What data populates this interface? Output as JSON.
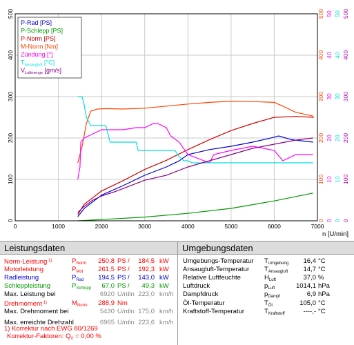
{
  "chart_data": {
    "type": "line",
    "xlabel": "n [U/min]",
    "xlim": [
      0,
      7000
    ],
    "x_ticks": [
      "0",
      "1000",
      "2000",
      "3000",
      "4000",
      "5000",
      "6000",
      "7000"
    ],
    "grid": true,
    "legend_position": "top-left",
    "y_axes": [
      {
        "side": "left",
        "offset": 0,
        "color": "#000000",
        "range": [
          0,
          500
        ],
        "ticks": [
          "0",
          "100",
          "200",
          "300",
          "400",
          "500"
        ]
      },
      {
        "side": "right",
        "offset": 0,
        "color": "#ff4400",
        "range": [
          0,
          500
        ],
        "ticks": [
          "0",
          "100",
          "200",
          "300",
          "400",
          "500"
        ]
      },
      {
        "side": "right",
        "offset": 1,
        "color": "#ff00ff",
        "range": [
          0,
          50
        ],
        "ticks": [
          "0",
          "10",
          "20",
          "30",
          "40",
          "50"
        ]
      },
      {
        "side": "right",
        "offset": 2,
        "color": "#00dddd",
        "range": [
          0,
          50
        ],
        "ticks": [
          "0",
          "10",
          "20",
          "30",
          "40",
          "50"
        ]
      },
      {
        "side": "right",
        "offset": 3,
        "color": "#b000b0",
        "range": [
          0,
          500
        ],
        "ticks": [
          "0",
          "100",
          "200",
          "300",
          "400",
          "500"
        ]
      }
    ],
    "legend": [
      {
        "label": "P-Rad [PS]",
        "color": "#0000cc"
      },
      {
        "label": "P-Schlepp [PS]",
        "color": "#009900"
      },
      {
        "label": "P-Norm [PS]",
        "color": "#cc0000"
      },
      {
        "label": "M-Norm [Nm]",
        "color": "#ff4400"
      },
      {
        "label": "Zündung [°]",
        "color": "#ff00ff"
      },
      {
        "label": "T",
        "sub": "Ansaugluft",
        "suffix": " [°C]",
        "color": "#00dddd"
      },
      {
        "label": "V",
        "sub": "Luftmenge",
        "suffix": " [gm/s]",
        "color": "#880088"
      }
    ],
    "series": [
      {
        "name": "P-Rad [PS]",
        "color": "#0000cc",
        "axis": 0,
        "x": [
          1450,
          1600,
          2000,
          2500,
          3000,
          3500,
          3800,
          4000,
          4500,
          5000,
          5500,
          6000,
          6100,
          6400,
          6900
        ],
        "y": [
          10,
          30,
          62,
          85,
          110,
          130,
          145,
          160,
          172,
          180,
          190,
          202,
          205,
          196,
          190
        ]
      },
      {
        "name": "P-Schlepp [PS]",
        "color": "#009900",
        "axis": 0,
        "x": [
          1450,
          2000,
          3000,
          4000,
          5000,
          6000,
          6900
        ],
        "y": [
          0,
          3,
          9,
          18,
          30,
          48,
          67
        ]
      },
      {
        "name": "P-Norm [PS]",
        "color": "#cc0000",
        "axis": 0,
        "x": [
          1450,
          1600,
          2000,
          2500,
          3000,
          3500,
          4000,
          4500,
          5000,
          5500,
          6000,
          6500,
          6920
        ],
        "y": [
          15,
          40,
          72,
          97,
          124,
          146,
          172,
          196,
          218,
          235,
          250,
          252,
          250
        ]
      },
      {
        "name": "M-Norm [Nm]",
        "color": "#ff4400",
        "axis": 1,
        "x": [
          1450,
          1550,
          1650,
          1750,
          1900,
          2100,
          2500,
          3000,
          3500,
          4000,
          4500,
          5000,
          5500,
          6000,
          6200,
          6500,
          6900
        ],
        "y": [
          140,
          180,
          235,
          265,
          270,
          271,
          270,
          272,
          277,
          282,
          286,
          289,
          288,
          286,
          277,
          262,
          253
        ]
      },
      {
        "name": "Zündung [°]",
        "color": "#ff00ff",
        "axis": 2,
        "x": [
          1450,
          1500,
          1520,
          1600,
          1700,
          1800,
          1900,
          2000,
          2200,
          2500,
          2800,
          3000,
          3200,
          3300,
          3500,
          3600,
          3800,
          4000,
          4500,
          4600,
          5000,
          5500,
          6000,
          6200,
          6500,
          6900
        ],
        "y": [
          10,
          13,
          19,
          20,
          20.5,
          21,
          21.5,
          22,
          22,
          22,
          22.5,
          22.5,
          23.5,
          23.5,
          22.5,
          20.5,
          19,
          16,
          14,
          16,
          17,
          18,
          17,
          14.5,
          16,
          16
        ]
      },
      {
        "name": "T Ansaugluft [°C]",
        "color": "#00dddd",
        "axis": 3,
        "x": [
          1450,
          1550,
          1600,
          1650,
          1700,
          1750,
          2100,
          2150,
          2200,
          2800,
          2850,
          3300,
          3700,
          3800,
          3900,
          4000,
          4100,
          4600,
          4700,
          6900
        ],
        "y": [
          30,
          30,
          28,
          25,
          24,
          23,
          23,
          21,
          19,
          19,
          17,
          17,
          17,
          15.5,
          14.5,
          14.5,
          14,
          14,
          14,
          14
        ]
      },
      {
        "name": "V Luftmenge [gm/s]",
        "color": "#880088",
        "axis": 4,
        "x": [
          1450,
          1600,
          1800,
          2000,
          2300,
          2600,
          3000,
          3500,
          4000,
          4500,
          5000,
          5500,
          6000,
          6500,
          6900
        ],
        "y": [
          20,
          35,
          50,
          60,
          70,
          82,
          98,
          110,
          130,
          145,
          160,
          175,
          185,
          195,
          200
        ]
      }
    ]
  },
  "left_panel": {
    "title": "Leistungsdaten",
    "rows": [
      {
        "label": "Norm-Leistung",
        "note": " 1)",
        "label_color": "#ff0000",
        "sym": "P",
        "sub": "Norm",
        "sym_color": "#ff0000",
        "v1": "250,8",
        "u1": "PS",
        "v2": "184,5",
        "u2": "kW",
        "vcolor": "#ff0000"
      },
      {
        "label": "Motorleistung",
        "note": "",
        "label_color": "#ff0000",
        "sym": "P",
        "sub": "Mot",
        "sym_color": "#ff0000",
        "v1": "261,5",
        "u1": "PS",
        "v2": "192,3",
        "u2": "kW",
        "vcolor": "#ff0000"
      },
      {
        "label": "Radleistung",
        "note": "",
        "label_color": "#0000cc",
        "sym": "P",
        "sub": "Rad",
        "sym_color": "#0000cc",
        "v1": "194,5",
        "u1": "PS",
        "v2": "143,0",
        "u2": "kW",
        "vcolor": "#0000cc"
      },
      {
        "label": "Schleppleistung",
        "note": "",
        "label_color": "#009900",
        "sym": "P",
        "sub": "Schlepp",
        "sym_color": "#009900",
        "v1": "67,0",
        "u1": "PS",
        "v2": "49,3",
        "u2": "kW",
        "vcolor": "#009900"
      },
      {
        "label": "Max. Leistung bei",
        "note": "",
        "label_color": "#000000",
        "sym": "",
        "sub": "",
        "sym_color": "#000000",
        "v1": "6920",
        "u1": "U/min",
        "v2": "223,0",
        "u2": "km/h",
        "vcolor": "#888888"
      }
    ],
    "rows2": [
      {
        "label": "Drehmoment",
        "note": " 1)",
        "label_color": "#ff0000",
        "sym": "M",
        "sub": "Norm",
        "sym_color": "#ff0000",
        "v1": "288,9",
        "u1": "Nm",
        "v2": "",
        "u2": "",
        "vcolor": "#ff0000"
      },
      {
        "label": "Max. Drehmoment bei",
        "note": "",
        "label_color": "#000000",
        "sym": "",
        "sub": "",
        "sym_color": "#000000",
        "v1": "5430",
        "u1": "U/min",
        "v2": "175,0",
        "u2": "km/h",
        "vcolor": "#888888"
      },
      {
        "label": "Max. erreichte Drehzahl",
        "note": "",
        "label_color": "#000000",
        "sym": "",
        "sub": "",
        "sym_color": "#000000",
        "v1": "6965",
        "u1": "U/min",
        "v2": "223,6",
        "u2": "km/h",
        "vcolor": "#888888"
      }
    ],
    "footnote1": "1) Korrektur nach EWG 80/1269",
    "footnote2_prefix": "Korrektur-Faktoren: Q",
    "footnote2_sub": "V",
    "footnote2_suffix": " =   0,00 %"
  },
  "right_panel": {
    "title": "Umgebungsdaten",
    "rows": [
      {
        "label": "Umgebungs-Temperatur",
        "sym": "T",
        "sub": "Umgebung",
        "value": "16,4",
        "unit": "°C"
      },
      {
        "label": "Ansaugluft-Temperatur",
        "sym": "T",
        "sub": "Ansaugluft",
        "value": "14,7",
        "unit": "°C"
      },
      {
        "label": "Relative Luftfeuchte",
        "sym": "H",
        "sub": "Luft",
        "value": "37,0",
        "unit": "%"
      },
      {
        "label": "Luftdruck",
        "sym": "p",
        "sub": "Luft",
        "value": "1014,1",
        "unit": "hPa"
      },
      {
        "label": "Dampfdruck",
        "sym": "p",
        "sub": "Dampf",
        "value": "6,9",
        "unit": "hPa"
      }
    ],
    "rows2": [
      {
        "label": "Öl-Temperatur",
        "sym": "T",
        "sub": "Öl",
        "value": "105,0",
        "unit": "°C"
      },
      {
        "label": "Kraftstoff-Temperatur",
        "sym": "T",
        "sub": "Kraftstoff",
        "value": "----,-",
        "unit": "°C"
      }
    ]
  }
}
